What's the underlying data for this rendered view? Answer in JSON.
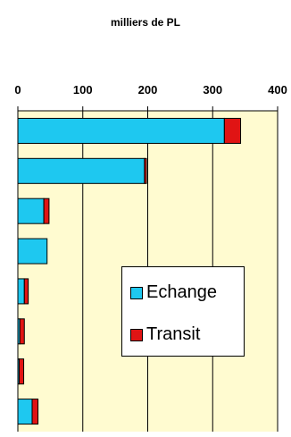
{
  "chart_data": {
    "type": "bar",
    "orientation": "horizontal",
    "stacked": true,
    "title": "milliers de PL",
    "categories": [
      "",
      "",
      "",
      "",
      "",
      "",
      "",
      ""
    ],
    "series": [
      {
        "name": "Echange",
        "color": "#1ec8f0",
        "values": [
          318,
          195,
          40,
          45,
          10,
          3,
          2,
          22
        ]
      },
      {
        "name": "Transit",
        "color": "#e01414",
        "values": [
          25,
          3,
          8,
          0,
          6,
          7,
          7,
          9
        ]
      }
    ],
    "xlim": [
      0,
      400
    ],
    "xticks": [
      0,
      100,
      200,
      300,
      400
    ],
    "axis_position": "top",
    "grid": true,
    "plot_background": "#fffbd0",
    "legend_position": "lower-right"
  }
}
